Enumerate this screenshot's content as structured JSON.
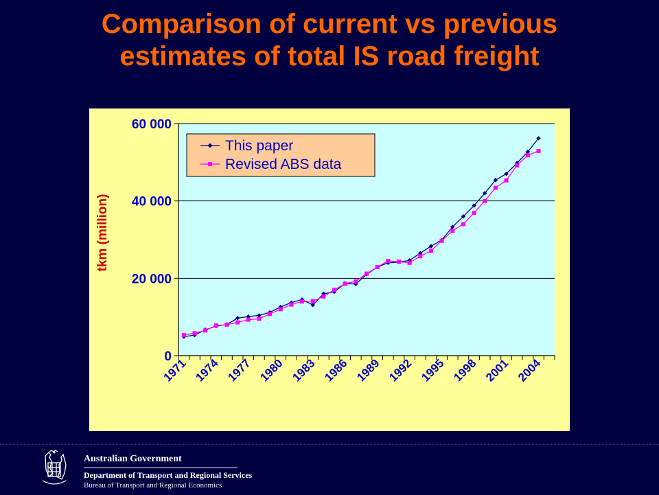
{
  "title": {
    "line1": "Comparison of current vs previous",
    "line2": "estimates of total IS road freight"
  },
  "chart_data": {
    "type": "line",
    "title": "Comparison of current vs previous estimates of total IS road freight",
    "xlabel": "",
    "ylabel": "tkm (million)",
    "ylim": [
      0,
      60000
    ],
    "yticks": [
      0,
      20000,
      40000,
      60000
    ],
    "ytick_labels": [
      "0",
      "20 000",
      "40 000",
      "60 000"
    ],
    "xlim": [
      1971,
      2005
    ],
    "xtick_labels": [
      "1971",
      "1974",
      "1977",
      "1980",
      "1983",
      "1986",
      "1989",
      "1992",
      "1995",
      "1998",
      "2001",
      "2004"
    ],
    "grid": "horizontal",
    "legend_position": "top-left",
    "x": [
      1971,
      1972,
      1973,
      1974,
      1975,
      1976,
      1977,
      1978,
      1979,
      1980,
      1981,
      1982,
      1983,
      1984,
      1985,
      1986,
      1987,
      1988,
      1989,
      1990,
      1991,
      1992,
      1993,
      1994,
      1995,
      1996,
      1997,
      1998,
      1999,
      2000,
      2001,
      2002,
      2003,
      2004,
      2005
    ],
    "series": [
      {
        "name": "This paper",
        "color": "#000080",
        "marker": "diamond",
        "values": [
          4900,
          5300,
          6700,
          7600,
          8100,
          9700,
          10100,
          10400,
          11200,
          12600,
          13700,
          14500,
          13100,
          16000,
          16500,
          18700,
          18500,
          21000,
          22900,
          24000,
          24200,
          24600,
          26500,
          28300,
          29900,
          33300,
          36000,
          38800,
          42000,
          45400,
          47000,
          49800,
          52700,
          56200,
          null
        ]
      },
      {
        "name": "Revised ABS data",
        "color": "#FF00FF",
        "marker": "square",
        "values": [
          5300,
          5800,
          6500,
          7800,
          8000,
          8600,
          9300,
          9500,
          10800,
          12000,
          13200,
          14000,
          14100,
          15300,
          17000,
          18600,
          19200,
          21200,
          22900,
          24500,
          24300,
          24000,
          25700,
          27100,
          29700,
          32300,
          34000,
          36900,
          40000,
          43400,
          45300,
          49200,
          51800,
          52900,
          null
        ]
      }
    ],
    "colors": {
      "plot_background": "#CCFFFF",
      "chart_background": "#FFFF99",
      "legend_background": "#FFCC99",
      "axis_text": "#0000CC",
      "ylabel_text": "#CC0000",
      "title_text": "#FF6600"
    }
  },
  "footer": {
    "org_line1": "Australian Government",
    "org_line2": "Department of Transport and Regional Services",
    "org_line3": "Bureau of Transport and Regional Economics",
    "logo_icon": "coat-of-arms-icon"
  }
}
